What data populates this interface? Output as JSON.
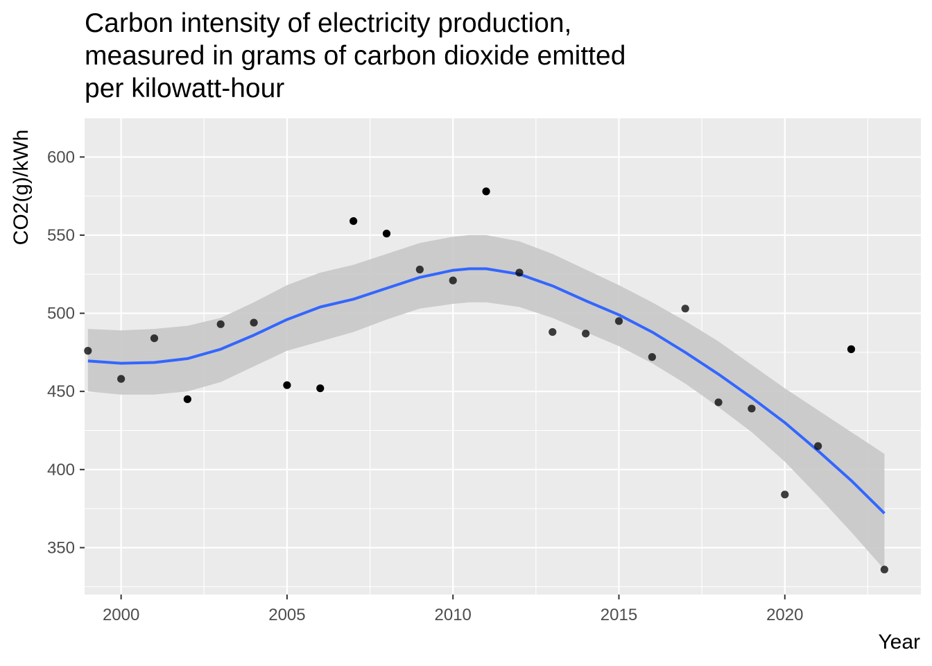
{
  "chart_data": {
    "type": "scatter",
    "title_lines": [
      "Carbon intensity of electricity production,",
      "measured in grams of carbon dioxide emitted",
      "per kilowatt-hour"
    ],
    "xlabel": "Year",
    "ylabel": "CO2(g)/kWh",
    "xlim": [
      1998.9,
      2024.1
    ],
    "ylim": [
      320,
      625
    ],
    "x_ticks": [
      2000,
      2005,
      2010,
      2015,
      2020
    ],
    "x_tick_labels": [
      "2000",
      "2005",
      "2010",
      "2015",
      "2020"
    ],
    "y_ticks": [
      350,
      400,
      450,
      500,
      550,
      600
    ],
    "y_tick_labels": [
      "350",
      "400",
      "450",
      "500",
      "550",
      "600"
    ],
    "grid": true,
    "colors": {
      "panel": "#ebebeb",
      "grid": "#ffffff",
      "points": "#000000",
      "smooth_line": "#3366ff",
      "ribbon": "#c8c8c8"
    },
    "points": [
      {
        "x": 1999,
        "y": 476
      },
      {
        "x": 2000,
        "y": 458
      },
      {
        "x": 2001,
        "y": 484
      },
      {
        "x": 2002,
        "y": 445
      },
      {
        "x": 2003,
        "y": 493
      },
      {
        "x": 2004,
        "y": 494
      },
      {
        "x": 2005,
        "y": 454
      },
      {
        "x": 2006,
        "y": 452
      },
      {
        "x": 2007,
        "y": 559
      },
      {
        "x": 2008,
        "y": 551
      },
      {
        "x": 2009,
        "y": 528
      },
      {
        "x": 2010,
        "y": 521
      },
      {
        "x": 2011,
        "y": 578
      },
      {
        "x": 2012,
        "y": 526
      },
      {
        "x": 2013,
        "y": 488
      },
      {
        "x": 2014,
        "y": 487
      },
      {
        "x": 2015,
        "y": 495
      },
      {
        "x": 2016,
        "y": 472
      },
      {
        "x": 2017,
        "y": 503
      },
      {
        "x": 2018,
        "y": 443
      },
      {
        "x": 2019,
        "y": 439
      },
      {
        "x": 2020,
        "y": 384
      },
      {
        "x": 2021,
        "y": 415
      },
      {
        "x": 2022,
        "y": 477
      },
      {
        "x": 2023,
        "y": 336
      }
    ],
    "smooth": [
      {
        "x": 1999,
        "y": 469.5,
        "lo": 450,
        "hi": 490
      },
      {
        "x": 2000,
        "y": 468,
        "lo": 448,
        "hi": 489
      },
      {
        "x": 2001,
        "y": 468.5,
        "lo": 448,
        "hi": 490
      },
      {
        "x": 2002,
        "y": 471,
        "lo": 450,
        "hi": 492
      },
      {
        "x": 2003,
        "y": 477,
        "lo": 456,
        "hi": 497
      },
      {
        "x": 2004,
        "y": 486,
        "lo": 466,
        "hi": 507
      },
      {
        "x": 2005,
        "y": 496,
        "lo": 476,
        "hi": 518
      },
      {
        "x": 2006,
        "y": 504,
        "lo": 482,
        "hi": 526
      },
      {
        "x": 2007,
        "y": 509,
        "lo": 488,
        "hi": 531
      },
      {
        "x": 2008,
        "y": 516,
        "lo": 496,
        "hi": 538
      },
      {
        "x": 2009,
        "y": 523,
        "lo": 503,
        "hi": 545
      },
      {
        "x": 2010,
        "y": 527.5,
        "lo": 506,
        "hi": 549
      },
      {
        "x": 2010.5,
        "y": 528.5,
        "lo": 507,
        "hi": 550
      },
      {
        "x": 2011,
        "y": 528.5,
        "lo": 507,
        "hi": 550
      },
      {
        "x": 2012,
        "y": 525,
        "lo": 504,
        "hi": 546
      },
      {
        "x": 2013,
        "y": 517.5,
        "lo": 497,
        "hi": 538
      },
      {
        "x": 2014,
        "y": 508,
        "lo": 488,
        "hi": 528
      },
      {
        "x": 2015,
        "y": 499,
        "lo": 479,
        "hi": 518
      },
      {
        "x": 2016,
        "y": 488,
        "lo": 468,
        "hi": 507
      },
      {
        "x": 2017,
        "y": 475,
        "lo": 455,
        "hi": 495
      },
      {
        "x": 2018,
        "y": 461,
        "lo": 440,
        "hi": 482
      },
      {
        "x": 2019,
        "y": 446,
        "lo": 424,
        "hi": 467
      },
      {
        "x": 2020,
        "y": 430,
        "lo": 405,
        "hi": 452
      },
      {
        "x": 2021,
        "y": 412,
        "lo": 383,
        "hi": 438
      },
      {
        "x": 2022,
        "y": 393,
        "lo": 360,
        "hi": 424
      },
      {
        "x": 2023,
        "y": 372,
        "lo": 336,
        "hi": 410
      }
    ]
  }
}
